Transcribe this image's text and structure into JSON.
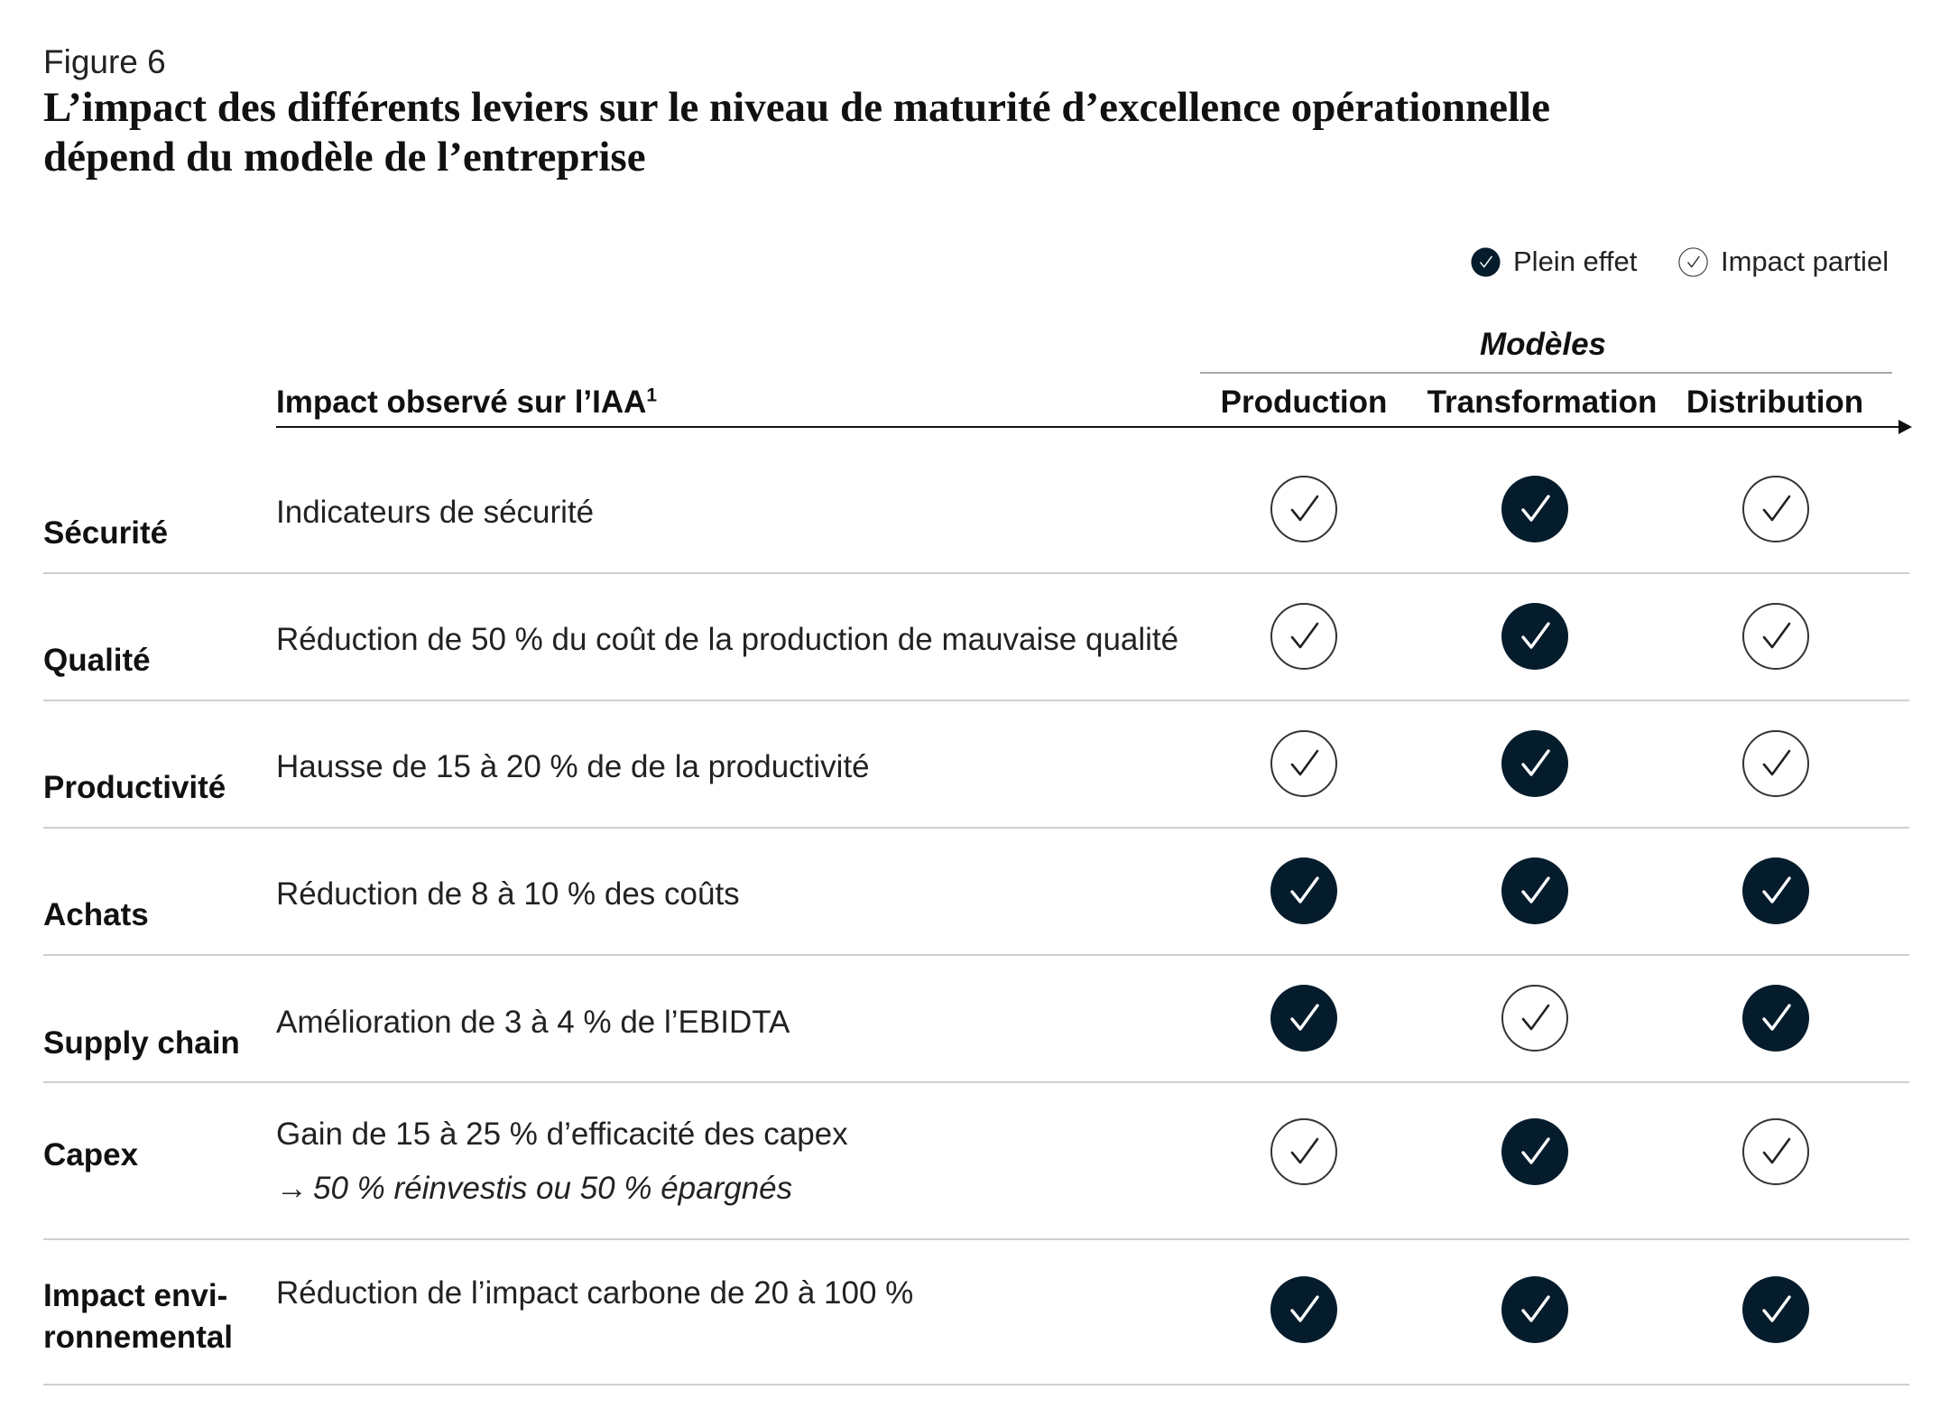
{
  "figure_label": "Figure 6",
  "title_lines": [
    "L’impact des différents leviers sur le niveau de maturité d’excellence opérationnelle",
    "dépend du modèle de l’entreprise"
  ],
  "legend": {
    "full_label": "Plein effet",
    "partial_label": "Impact partiel",
    "full_icon": "filled-check-circle-icon",
    "partial_icon": "outline-check-circle-icon"
  },
  "colors": {
    "full": "#051c2c",
    "partial_stroke": "#333333"
  },
  "header": {
    "impact_label": "Impact observé sur l’IAA",
    "impact_footnote": "1",
    "models_title": "Modèles",
    "models": [
      "Production",
      "Transformation",
      "Distribution"
    ]
  },
  "rows": [
    {
      "lever": "Sécurité",
      "impact": "Indicateurs de sécurité",
      "impact_sub": "",
      "ratings": [
        "partial",
        "full",
        "partial"
      ]
    },
    {
      "lever": "Qualité",
      "impact": "Réduction de 50 % du coût de la production de mauvaise qualité",
      "impact_sub": "",
      "ratings": [
        "partial",
        "full",
        "partial"
      ]
    },
    {
      "lever": "Productivité",
      "impact": "Hausse de 15 à 20 % de de la productivité",
      "impact_sub": "",
      "ratings": [
        "partial",
        "full",
        "partial"
      ]
    },
    {
      "lever": "Achats",
      "impact": "Réduction de 8 à 10 % des coûts",
      "impact_sub": "",
      "ratings": [
        "full",
        "full",
        "full"
      ]
    },
    {
      "lever": "Supply chain",
      "impact": "Amélioration de 3 à 4 % de l’EBIDTA",
      "impact_sub": "",
      "ratings": [
        "full",
        "partial",
        "full"
      ]
    },
    {
      "lever": "Capex",
      "impact": "Gain de 15 à 25 % d’efficacité des capex",
      "impact_sub": "50 % réinvestis ou 50 % épargnés",
      "ratings": [
        "partial",
        "full",
        "partial"
      ]
    },
    {
      "lever": "Impact envi-\nronnemental",
      "impact": "Réduction de l’impact carbone de 20 à 100 %",
      "impact_sub": "",
      "ratings": [
        "full",
        "full",
        "full"
      ]
    }
  ]
}
